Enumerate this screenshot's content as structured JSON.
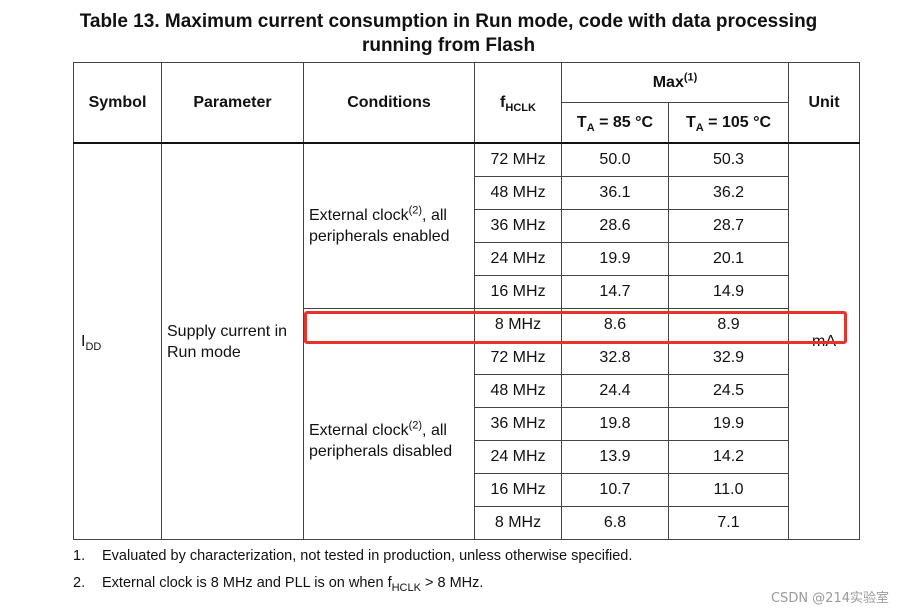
{
  "title": {
    "line1": "Table 13. Maximum current consumption in Run mode, code with data processing",
    "line2": "running from Flash"
  },
  "header": {
    "symbol": "Symbol",
    "parameter": "Parameter",
    "conditions": "Conditions",
    "fhclk_main": "f",
    "fhclk_sub": "HCLK",
    "max_label": "Max",
    "max_sup": "(1)",
    "ta_main": "T",
    "ta_sub": "A",
    "ta85_value": " = 85 °C",
    "ta105_value": " = 105 °C",
    "unit": "Unit"
  },
  "symbol": {
    "main": "I",
    "sub": "DD"
  },
  "parameter": "Supply current in Run mode",
  "unit": "mA",
  "groups": [
    {
      "condition_pre": "External clock",
      "condition_sup": "(2)",
      "condition_post": ", all peripherals enabled",
      "rows": [
        {
          "freq": "72 MHz",
          "t85": "50.0",
          "t105": "50.3"
        },
        {
          "freq": "48 MHz",
          "t85": "36.1",
          "t105": "36.2"
        },
        {
          "freq": "36 MHz",
          "t85": "28.6",
          "t105": "28.7"
        },
        {
          "freq": "24 MHz",
          "t85": "19.9",
          "t105": "20.1"
        },
        {
          "freq": "16 MHz",
          "t85": "14.7",
          "t105": "14.9"
        },
        {
          "freq": "8 MHz",
          "t85": "8.6",
          "t105": "8.9"
        }
      ]
    },
    {
      "condition_pre": "External clock",
      "condition_sup": "(2)",
      "condition_post": ", all peripherals disabled",
      "rows": [
        {
          "freq": "72 MHz",
          "t85": "32.8",
          "t105": "32.9"
        },
        {
          "freq": "48 MHz",
          "t85": "24.4",
          "t105": "24.5"
        },
        {
          "freq": "36 MHz",
          "t85": "19.8",
          "t105": "19.9"
        },
        {
          "freq": "24 MHz",
          "t85": "13.9",
          "t105": "14.2"
        },
        {
          "freq": "16 MHz",
          "t85": "10.7",
          "t105": "11.0"
        },
        {
          "freq": "8 MHz",
          "t85": "6.8",
          "t105": "7.1"
        }
      ]
    }
  ],
  "notes": [
    {
      "num": "1.",
      "text": "Evaluated by characterization, not tested in production, unless otherwise specified."
    },
    {
      "num": "2.",
      "text_pre": "External clock is 8 MHz and PLL is on when f",
      "text_sub": "HCLK",
      "text_post": " > 8 MHz."
    }
  ],
  "watermark": "CSDN @214实验室",
  "highlight_color": "#e8322a"
}
